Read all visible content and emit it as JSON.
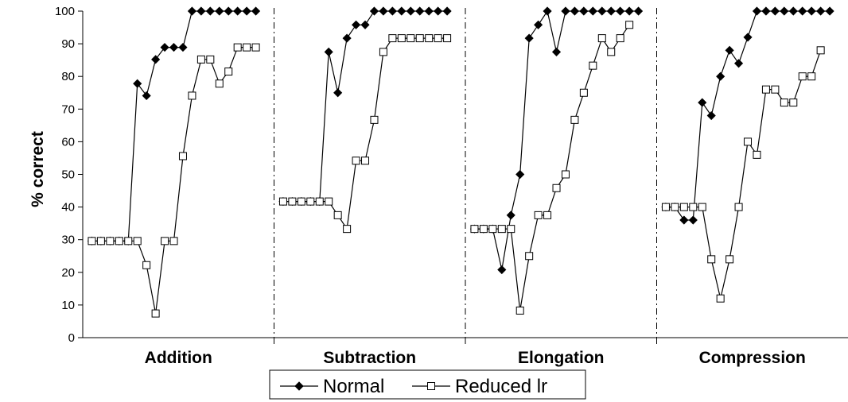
{
  "chart_data": {
    "type": "line",
    "ylabel": "% correct",
    "ylim": [
      0,
      100
    ],
    "yticks": [
      0,
      10,
      20,
      30,
      40,
      50,
      60,
      70,
      80,
      90,
      100
    ],
    "grid": false,
    "legend_position": "bottom-center",
    "panels": [
      {
        "label": "Addition",
        "series": [
          {
            "name": "Normal",
            "values": [
              29.6,
              29.6,
              29.6,
              29.6,
              29.6,
              77.8,
              74.1,
              85.2,
              88.9,
              88.9,
              88.9,
              100,
              100,
              100,
              100,
              100,
              100,
              100,
              100
            ]
          },
          {
            "name": "Reduced lr",
            "values": [
              29.6,
              29.6,
              29.6,
              29.6,
              29.6,
              29.6,
              22.2,
              7.4,
              29.6,
              29.6,
              55.6,
              74.1,
              85.2,
              85.2,
              77.8,
              81.5,
              88.9,
              88.9,
              88.9
            ]
          }
        ]
      },
      {
        "label": "Subtraction",
        "series": [
          {
            "name": "Normal",
            "values": [
              41.7,
              41.7,
              41.7,
              41.7,
              41.7,
              87.5,
              75.0,
              91.7,
              95.8,
              95.8,
              100,
              100,
              100,
              100,
              100,
              100,
              100,
              100,
              100
            ]
          },
          {
            "name": "Reduced lr",
            "values": [
              41.7,
              41.7,
              41.7,
              41.7,
              41.7,
              41.7,
              37.5,
              33.3,
              54.2,
              54.2,
              66.7,
              87.5,
              91.7,
              91.7,
              91.7,
              91.7,
              91.7,
              91.7,
              91.7
            ]
          }
        ]
      },
      {
        "label": "Elongation",
        "series": [
          {
            "name": "Normal",
            "values": [
              33.3,
              33.3,
              33.3,
              20.8,
              37.5,
              50.0,
              91.7,
              95.8,
              100,
              87.5,
              100,
              100,
              100,
              100,
              100,
              100,
              100,
              100,
              100
            ]
          },
          {
            "name": "Reduced lr",
            "values": [
              33.3,
              33.3,
              33.3,
              33.3,
              33.3,
              8.3,
              25.0,
              37.5,
              37.5,
              45.8,
              50.0,
              66.7,
              75.0,
              83.3,
              91.7,
              87.5,
              91.7,
              95.8
            ]
          }
        ]
      },
      {
        "label": "Compression",
        "series": [
          {
            "name": "Normal",
            "values": [
              40,
              40,
              36,
              36,
              72,
              68,
              80,
              88,
              84,
              92,
              100,
              100,
              100,
              100,
              100,
              100,
              100,
              100,
              100
            ]
          },
          {
            "name": "Reduced lr",
            "values": [
              40,
              40,
              40,
              40,
              40,
              24,
              12,
              24,
              40,
              60,
              56,
              76,
              76,
              72,
              72,
              80,
              80,
              88
            ]
          }
        ]
      }
    ],
    "legend": [
      {
        "name": "Normal",
        "marker": "filled-diamond"
      },
      {
        "name": "Reduced lr",
        "marker": "open-square"
      }
    ]
  }
}
